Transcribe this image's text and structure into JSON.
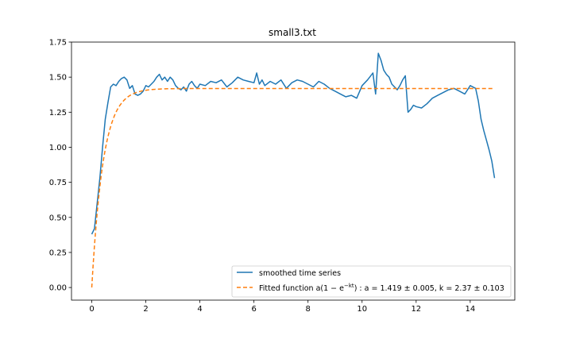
{
  "chart_data": {
    "type": "line",
    "title": "small3.txt",
    "xlabel": "",
    "ylabel": "",
    "xlim": [
      -0.75,
      15.65
    ],
    "ylim": [
      -0.09,
      1.75
    ],
    "xticks": [
      "0",
      "2",
      "4",
      "6",
      "8",
      "10",
      "12",
      "14"
    ],
    "yticks": [
      "0.00",
      "0.25",
      "0.50",
      "0.75",
      "1.00",
      "1.25",
      "1.50",
      "1.75"
    ],
    "grid": false,
    "legend_position": "lower-right",
    "series": [
      {
        "name": "smoothed time series",
        "style": "solid",
        "color": "#1f77b4",
        "x": [
          0.0,
          0.1,
          0.2,
          0.3,
          0.4,
          0.5,
          0.6,
          0.7,
          0.8,
          0.9,
          1.0,
          1.1,
          1.2,
          1.3,
          1.4,
          1.5,
          1.6,
          1.7,
          1.8,
          1.9,
          2.0,
          2.1,
          2.2,
          2.3,
          2.4,
          2.5,
          2.6,
          2.7,
          2.8,
          2.9,
          3.0,
          3.1,
          3.2,
          3.3,
          3.4,
          3.5,
          3.6,
          3.7,
          3.8,
          3.9,
          4.0,
          4.2,
          4.4,
          4.6,
          4.8,
          5.0,
          5.2,
          5.4,
          5.6,
          5.8,
          6.0,
          6.1,
          6.2,
          6.3,
          6.4,
          6.6,
          6.8,
          7.0,
          7.2,
          7.4,
          7.6,
          7.8,
          8.0,
          8.2,
          8.4,
          8.6,
          8.8,
          9.0,
          9.2,
          9.4,
          9.6,
          9.8,
          10.0,
          10.2,
          10.4,
          10.5,
          10.6,
          10.7,
          10.8,
          10.9,
          11.0,
          11.1,
          11.2,
          11.3,
          11.4,
          11.5,
          11.6,
          11.7,
          11.8,
          11.9,
          12.0,
          12.2,
          12.4,
          12.6,
          12.8,
          13.0,
          13.2,
          13.4,
          13.6,
          13.8,
          14.0,
          14.2,
          14.3,
          14.4,
          14.5,
          14.6,
          14.7,
          14.8,
          14.9
        ],
        "y": [
          0.38,
          0.42,
          0.6,
          0.78,
          1.0,
          1.2,
          1.32,
          1.43,
          1.45,
          1.44,
          1.47,
          1.49,
          1.5,
          1.48,
          1.42,
          1.44,
          1.38,
          1.37,
          1.38,
          1.4,
          1.44,
          1.43,
          1.45,
          1.47,
          1.5,
          1.52,
          1.48,
          1.5,
          1.47,
          1.5,
          1.48,
          1.44,
          1.42,
          1.41,
          1.43,
          1.4,
          1.45,
          1.47,
          1.44,
          1.42,
          1.45,
          1.44,
          1.47,
          1.46,
          1.48,
          1.43,
          1.46,
          1.5,
          1.48,
          1.47,
          1.46,
          1.53,
          1.45,
          1.48,
          1.44,
          1.47,
          1.45,
          1.48,
          1.42,
          1.46,
          1.48,
          1.47,
          1.45,
          1.43,
          1.47,
          1.45,
          1.42,
          1.4,
          1.38,
          1.36,
          1.37,
          1.35,
          1.44,
          1.48,
          1.53,
          1.38,
          1.67,
          1.62,
          1.55,
          1.52,
          1.5,
          1.45,
          1.43,
          1.41,
          1.44,
          1.48,
          1.51,
          1.25,
          1.27,
          1.3,
          1.29,
          1.28,
          1.31,
          1.35,
          1.37,
          1.39,
          1.41,
          1.42,
          1.4,
          1.38,
          1.44,
          1.42,
          1.33,
          1.2,
          1.12,
          1.05,
          0.98,
          0.9,
          0.78
        ]
      },
      {
        "name": "Fitted function a(1 − e^(−kt)) : a = 1.419 ± 0.005, k = 2.37 ± 0.103",
        "style": "dashed",
        "color": "#ff7f0e",
        "model": {
          "a": 1.419,
          "k": 2.37,
          "t_min": 0.0,
          "t_max": 14.9
        }
      }
    ],
    "legend": {
      "entries": [
        {
          "text": "smoothed time series"
        },
        {
          "text": "Fitted function a(1 − e",
          "sup": "−kt",
          "text2": ") : a = 1.419 ± 0.005, k = 2.37 ± 0.103"
        }
      ]
    }
  }
}
